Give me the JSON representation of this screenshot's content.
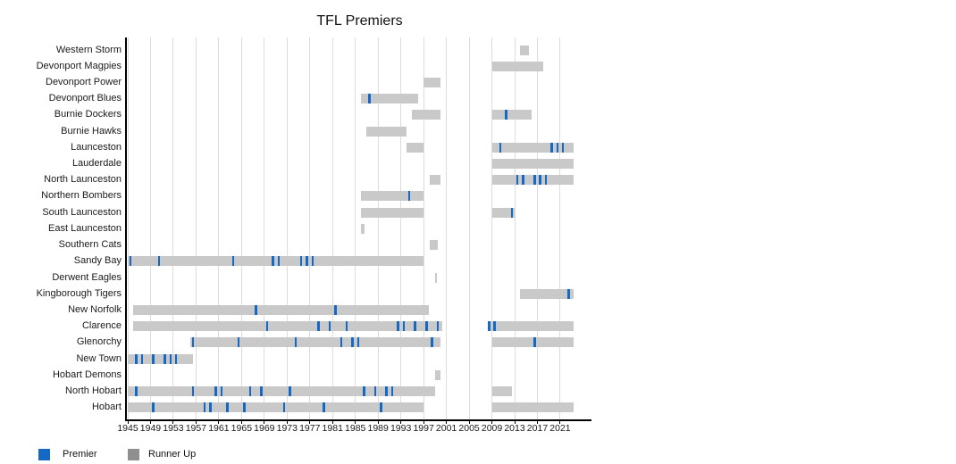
{
  "chart_data": {
    "type": "gantt",
    "title": "TFL Premiers",
    "xlabel": "",
    "ylabel": "",
    "x_axis": {
      "tick_years": [
        1945,
        1949,
        1953,
        1957,
        1961,
        1965,
        1969,
        1973,
        1977,
        1981,
        1985,
        1989,
        1993,
        1997,
        2001,
        2005,
        2009,
        2013,
        2017,
        2021
      ],
      "range": [
        1945,
        2023.3
      ],
      "grid": true
    },
    "legend": {
      "premier_label": "Premier",
      "runner_up_label": "Runner Up",
      "position": "bottom-left"
    },
    "colors": {
      "premier": "#1669c2",
      "runner_up_bar": "#c9c9c9",
      "legend_runner_up_swatch": "#8f8f8f",
      "gridline": "#dcdcdc",
      "axis": "#000000"
    },
    "teams": [
      {
        "name": "Western Storm",
        "runner_up_bars": [
          [
            2014,
            2015.5
          ]
        ],
        "premier_years": []
      },
      {
        "name": "Devonport Magpies",
        "runner_up_bars": [
          [
            2009,
            2018
          ]
        ],
        "premier_years": []
      },
      {
        "name": "Devonport Power",
        "runner_up_bars": [
          [
            1997,
            2000
          ]
        ],
        "premier_years": []
      },
      {
        "name": "Devonport Blues",
        "runner_up_bars": [
          [
            1986,
            1996
          ]
        ],
        "premier_years": [
          1988
        ]
      },
      {
        "name": "Burnie Dockers",
        "runner_up_bars": [
          [
            1995,
            2000
          ],
          [
            2009,
            2016
          ]
        ],
        "premier_years": [
          2012
        ]
      },
      {
        "name": "Burnie Hawks",
        "runner_up_bars": [
          [
            1987,
            1994
          ]
        ],
        "premier_years": []
      },
      {
        "name": "Launceston",
        "runner_up_bars": [
          [
            1994,
            1997
          ],
          [
            2009,
            2023.3
          ]
        ],
        "premier_years": [
          2011,
          2020,
          2021,
          2022
        ]
      },
      {
        "name": "Lauderdale",
        "runner_up_bars": [
          [
            2009,
            2023.3
          ]
        ],
        "premier_years": []
      },
      {
        "name": "North Launceston",
        "runner_up_bars": [
          [
            1998,
            2000
          ],
          [
            2009,
            2023.3
          ]
        ],
        "premier_years": [
          2014,
          2015,
          2017,
          2018,
          2019
        ]
      },
      {
        "name": "Northern Bombers",
        "runner_up_bars": [
          [
            1986,
            1997
          ]
        ],
        "premier_years": [
          1995
        ]
      },
      {
        "name": "South Launceston",
        "runner_up_bars": [
          [
            1986,
            1997
          ],
          [
            2009,
            2013
          ]
        ],
        "premier_years": [
          2013
        ]
      },
      {
        "name": "East Launceston",
        "runner_up_bars": [
          [
            1986,
            1986.6
          ]
        ],
        "premier_years": []
      },
      {
        "name": "Southern Cats",
        "runner_up_bars": [
          [
            1998,
            1999.5
          ]
        ],
        "premier_years": []
      },
      {
        "name": "Sandy Bay",
        "runner_up_bars": [
          [
            1945,
            1997
          ]
        ],
        "premier_years": [
          1946,
          1951,
          1964,
          1971,
          1972,
          1976,
          1977,
          1978
        ]
      },
      {
        "name": "Derwent Eagles",
        "runner_up_bars": [
          [
            1999,
            1999.4
          ]
        ],
        "premier_years": []
      },
      {
        "name": "Kingborough Tigers",
        "runner_up_bars": [
          [
            2014,
            2023.3
          ]
        ],
        "premier_years": [
          2023
        ]
      },
      {
        "name": "New Norfolk",
        "runner_up_bars": [
          [
            1946,
            1998
          ]
        ],
        "premier_years": [
          1968,
          1982
        ]
      },
      {
        "name": "Clarence",
        "runner_up_bars": [
          [
            1946,
            2000.2
          ],
          [
            2008.5,
            2023.3
          ]
        ],
        "premier_years": [
          1970,
          1979,
          1981,
          1984,
          1993,
          1994,
          1996,
          1998,
          2000,
          2009,
          2010
        ]
      },
      {
        "name": "Glenorchy",
        "runner_up_bars": [
          [
            1956,
            2000
          ],
          [
            2009,
            2023.3
          ]
        ],
        "premier_years": [
          1957,
          1965,
          1975,
          1983,
          1985,
          1986,
          1999,
          2017
        ]
      },
      {
        "name": "New Town",
        "runner_up_bars": [
          [
            1945,
            1956.5
          ]
        ],
        "premier_years": [
          1947,
          1948,
          1950,
          1952,
          1953,
          1954
        ]
      },
      {
        "name": "Hobart Demons",
        "runner_up_bars": [
          [
            1999,
            2000
          ]
        ],
        "premier_years": []
      },
      {
        "name": "North Hobart",
        "runner_up_bars": [
          [
            1945,
            1999
          ],
          [
            2009,
            2012.5
          ]
        ],
        "premier_years": [
          1947,
          1957,
          1961,
          1962,
          1967,
          1969,
          1974,
          1987,
          1989,
          1991,
          1992
        ]
      },
      {
        "name": "Hobart",
        "runner_up_bars": [
          [
            1945,
            1997
          ],
          [
            2009,
            2023.3
          ]
        ],
        "premier_years": [
          1950,
          1959,
          1960,
          1963,
          1966,
          1973,
          1980,
          1990
        ]
      }
    ]
  }
}
